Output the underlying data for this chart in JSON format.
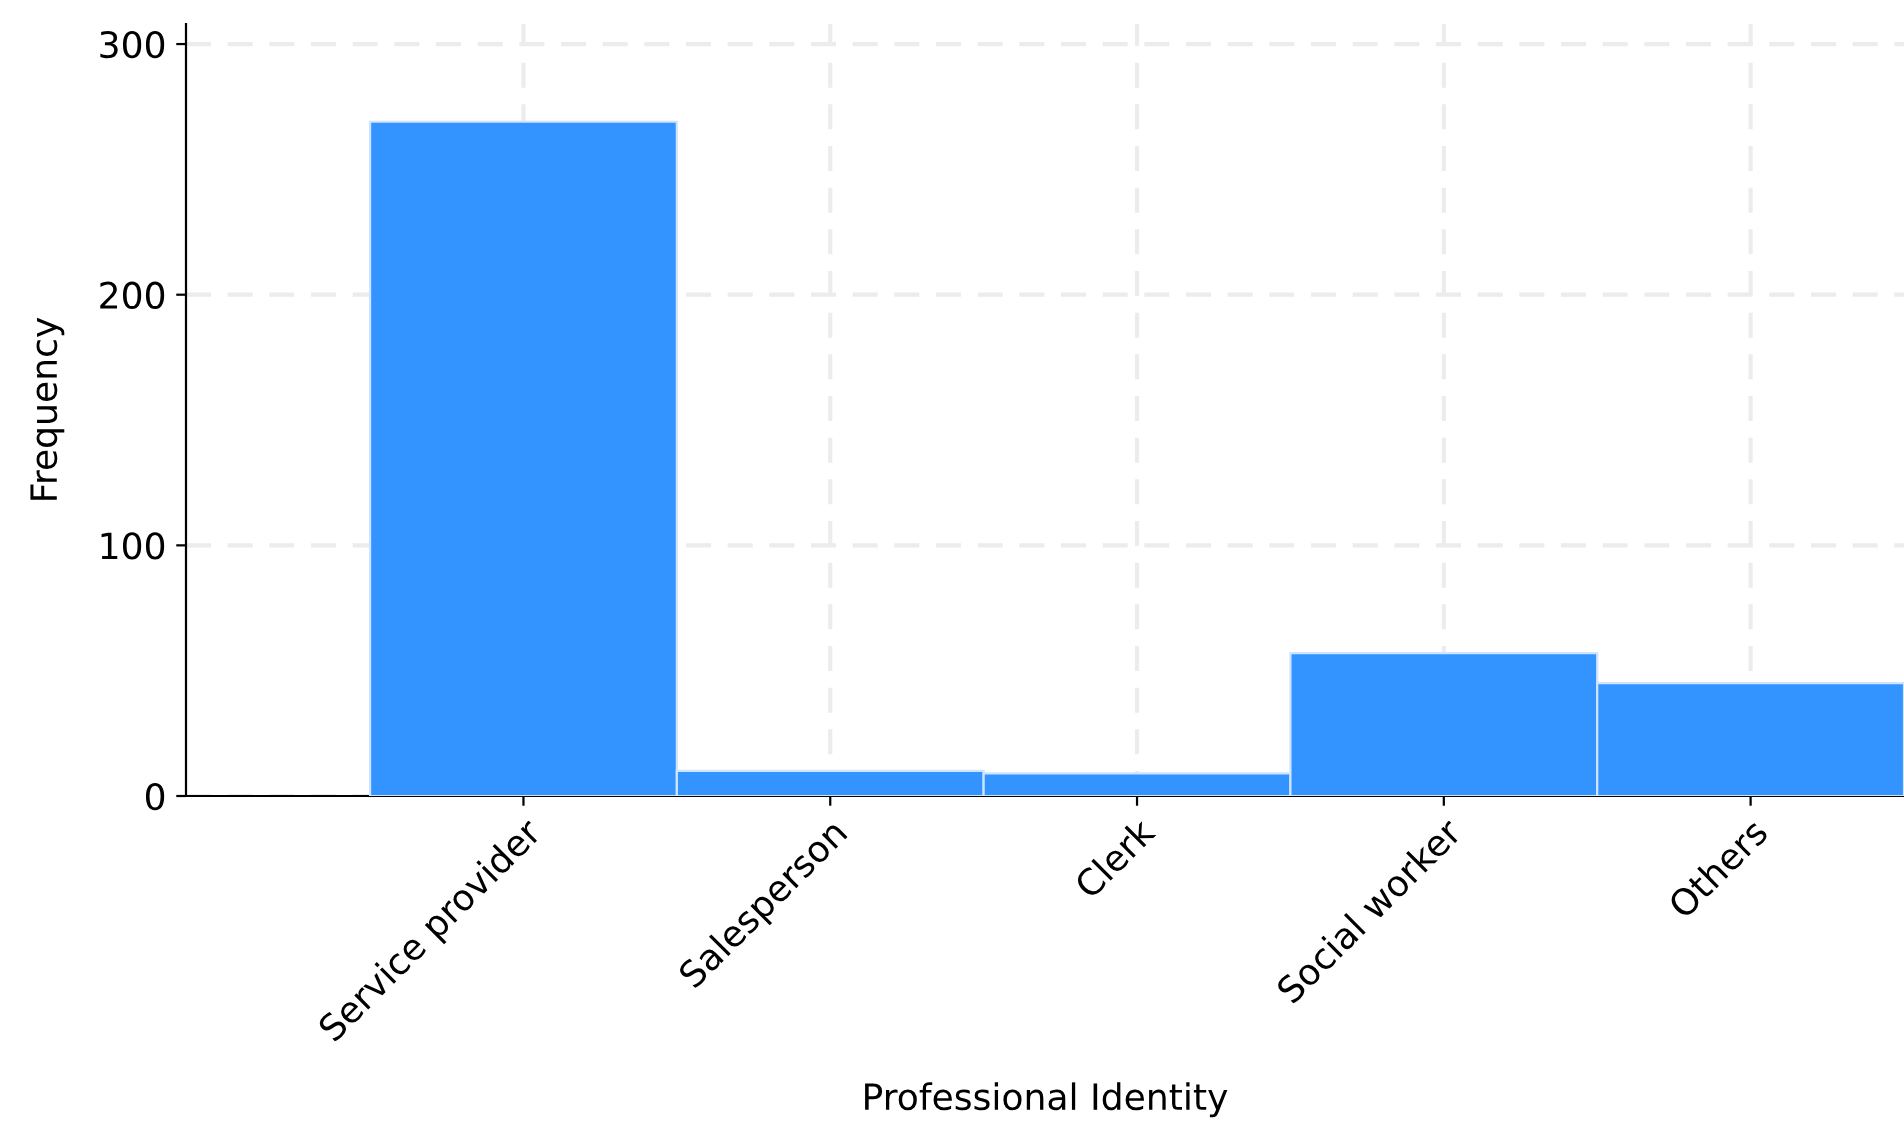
{
  "chart_data": {
    "type": "bar",
    "xlabel": "Professional Identity",
    "ylabel": "Frequency",
    "categories": [
      "Service provider",
      "Salesperson",
      "Clerk",
      "Social worker",
      "Others"
    ],
    "values": [
      269,
      10,
      9,
      57,
      45
    ],
    "color": "#3393ff",
    "ylim": [
      0,
      308
    ],
    "yticks": [
      0,
      100,
      200,
      300
    ],
    "grid": true,
    "line_style": "dashed"
  }
}
